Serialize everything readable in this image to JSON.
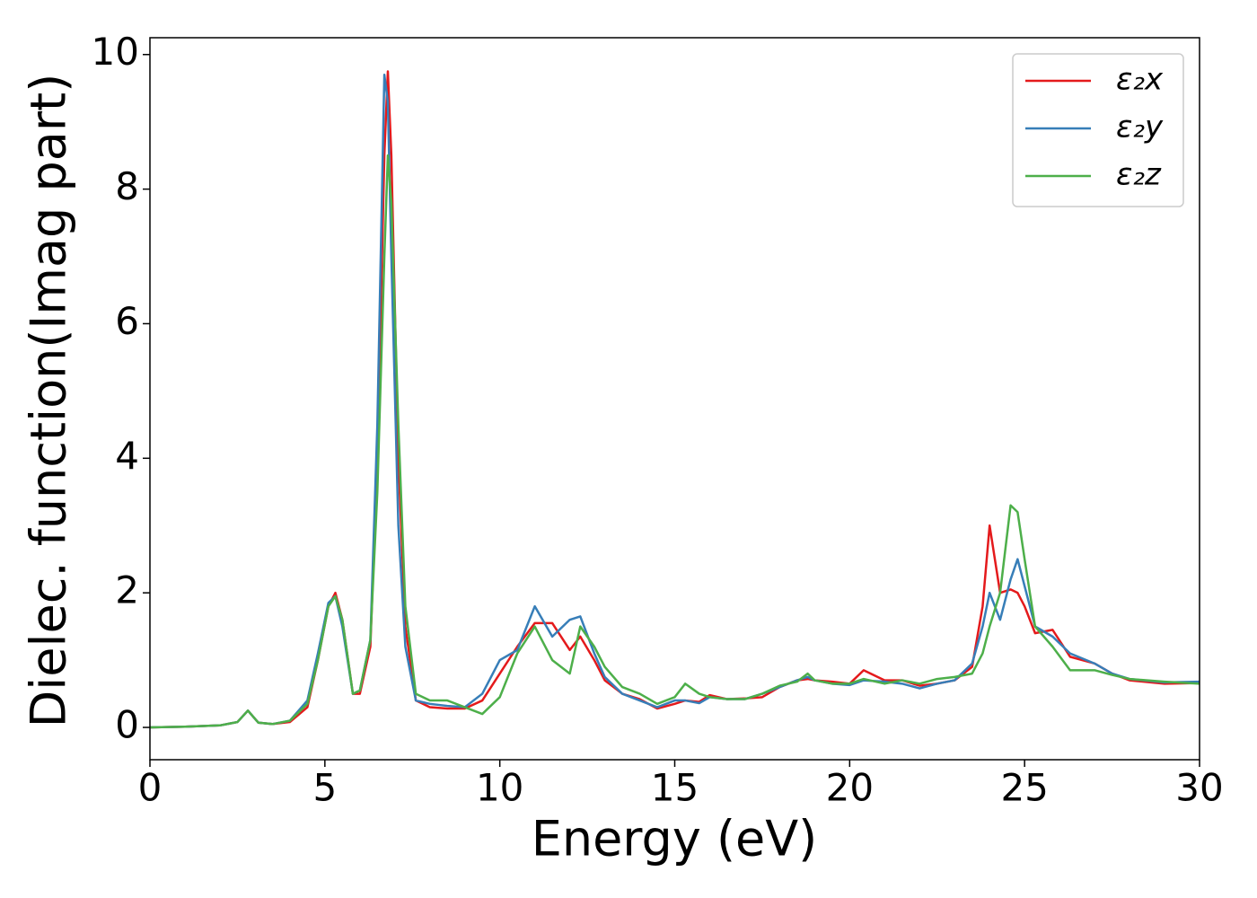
{
  "chart_data": {
    "type": "line",
    "x_label": "Energy (eV)",
    "y_label": "Dielec. function(Imag part)",
    "x": [
      0,
      1,
      2,
      2.5,
      2.8,
      3.1,
      3.5,
      4,
      4.5,
      4.8,
      5.1,
      5.3,
      5.5,
      5.8,
      6.0,
      6.3,
      6.5,
      6.7,
      6.8,
      6.9,
      7.1,
      7.3,
      7.6,
      8.0,
      8.5,
      9.0,
      9.5,
      10,
      10.5,
      11,
      11.5,
      12,
      12.3,
      12.7,
      13,
      13.5,
      14,
      14.5,
      15,
      15.3,
      15.7,
      16,
      16.5,
      17,
      17.5,
      18,
      18.5,
      18.8,
      19,
      19.5,
      20,
      20.4,
      21,
      21.5,
      22,
      22.5,
      23,
      23.5,
      23.8,
      24,
      24.3,
      24.6,
      24.8,
      25,
      25.3,
      25.8,
      26.3,
      27,
      27.5,
      28,
      29,
      30
    ],
    "series": [
      {
        "name": "ε₂x",
        "color": "#e41a1c",
        "values": [
          0,
          0.01,
          0.03,
          0.08,
          0.25,
          0.07,
          0.05,
          0.08,
          0.3,
          1.0,
          1.8,
          2.0,
          1.6,
          0.5,
          0.5,
          1.2,
          4.0,
          8.5,
          9.75,
          8.5,
          4.0,
          1.5,
          0.4,
          0.3,
          0.28,
          0.28,
          0.4,
          0.8,
          1.2,
          1.55,
          1.55,
          1.15,
          1.35,
          1.0,
          0.7,
          0.5,
          0.42,
          0.28,
          0.35,
          0.4,
          0.38,
          0.48,
          0.42,
          0.43,
          0.45,
          0.6,
          0.7,
          0.72,
          0.7,
          0.68,
          0.65,
          0.85,
          0.7,
          0.7,
          0.62,
          0.65,
          0.7,
          0.9,
          1.8,
          3.0,
          2.0,
          2.05,
          2.0,
          1.8,
          1.4,
          1.45,
          1.05,
          0.95,
          0.8,
          0.7,
          0.65,
          0.66
        ]
      },
      {
        "name": "ε₂y",
        "color": "#377eb8",
        "values": [
          0,
          0.01,
          0.03,
          0.08,
          0.25,
          0.07,
          0.05,
          0.1,
          0.4,
          1.1,
          1.85,
          1.95,
          1.5,
          0.5,
          0.55,
          1.3,
          4.5,
          9.7,
          9.3,
          7.0,
          3.0,
          1.2,
          0.4,
          0.35,
          0.32,
          0.3,
          0.5,
          1.0,
          1.15,
          1.8,
          1.35,
          1.6,
          1.65,
          1.1,
          0.75,
          0.5,
          0.4,
          0.3,
          0.4,
          0.4,
          0.36,
          0.45,
          0.42,
          0.42,
          0.5,
          0.6,
          0.7,
          0.75,
          0.7,
          0.65,
          0.63,
          0.7,
          0.68,
          0.65,
          0.58,
          0.65,
          0.7,
          0.95,
          1.5,
          2.0,
          1.6,
          2.2,
          2.5,
          2.1,
          1.5,
          1.35,
          1.1,
          0.95,
          0.8,
          0.72,
          0.67,
          0.68
        ]
      },
      {
        "name": "ε₂z",
        "color": "#4daf4a",
        "values": [
          0,
          0.01,
          0.03,
          0.08,
          0.25,
          0.07,
          0.05,
          0.1,
          0.35,
          1.0,
          1.8,
          1.95,
          1.6,
          0.5,
          0.55,
          1.3,
          3.5,
          7.0,
          8.5,
          7.8,
          4.5,
          1.8,
          0.5,
          0.4,
          0.4,
          0.3,
          0.2,
          0.45,
          1.1,
          1.5,
          1.0,
          0.8,
          1.5,
          1.2,
          0.9,
          0.6,
          0.5,
          0.35,
          0.45,
          0.65,
          0.5,
          0.45,
          0.42,
          0.42,
          0.5,
          0.62,
          0.68,
          0.8,
          0.7,
          0.65,
          0.65,
          0.72,
          0.65,
          0.7,
          0.65,
          0.72,
          0.75,
          0.8,
          1.1,
          1.5,
          2.0,
          3.3,
          3.2,
          2.5,
          1.5,
          1.2,
          0.85,
          0.85,
          0.78,
          0.72,
          0.68,
          0.65
        ]
      }
    ],
    "xlim": [
      0,
      30
    ],
    "xticks": [
      0,
      5,
      10,
      15,
      20,
      25,
      30
    ],
    "ylim": [
      -0.48,
      10.25
    ],
    "yticks": [
      0,
      2,
      4,
      6,
      8,
      10
    ],
    "legend": "upper right"
  }
}
